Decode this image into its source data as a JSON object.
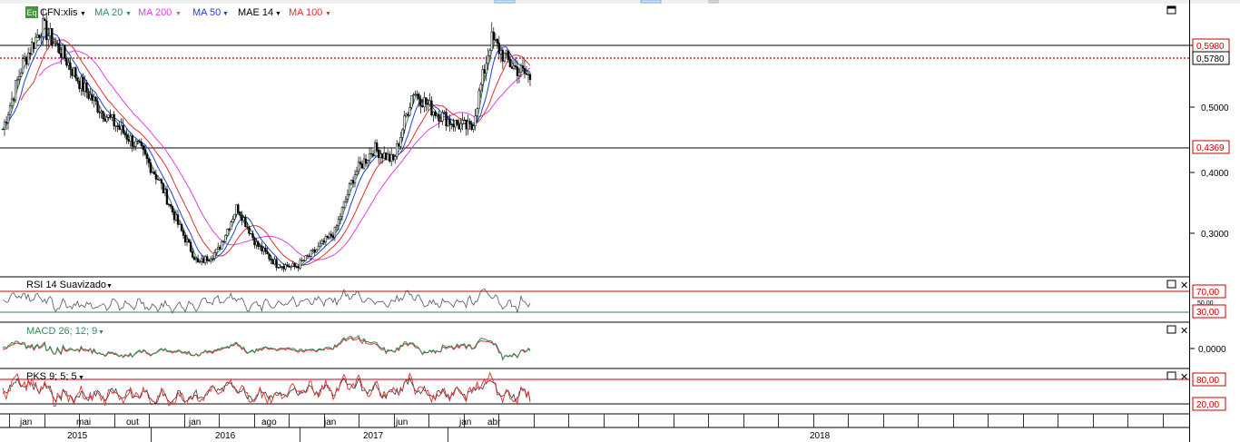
{
  "main_panel": {
    "symbol_badge": "Eq",
    "symbol_label": "CFN:xlis",
    "indicators": [
      {
        "label": "MA 20",
        "color": "#2e8b57"
      },
      {
        "label": "MA 200",
        "color": "#e040e0"
      },
      {
        "label": "MA 50",
        "color": "#1f3fd8"
      },
      {
        "label": "MAE 14",
        "color": "#000000"
      },
      {
        "label": "MA 100",
        "color": "#e03030"
      }
    ],
    "price_axis_ticks": [
      "0,5000",
      "0,4000",
      "0,3000"
    ],
    "price_boxes": [
      {
        "label": "0,5980"
      },
      {
        "label": "0,5780"
      },
      {
        "label": "0,4369"
      }
    ]
  },
  "rsi_panel": {
    "title": "RSI 14 Suavizado",
    "levels": [
      "70,00",
      "30,00"
    ],
    "overlap_text": "50,00"
  },
  "macd_panel": {
    "title": "MACD 26; 12; 9",
    "zero_label": "0,0000"
  },
  "pks_panel": {
    "title": "PKS 9; 5; 5",
    "levels": [
      "80,00",
      "20,00"
    ]
  },
  "time_axis": {
    "months": [
      "jan",
      "mai",
      "out",
      "jan",
      "ago",
      "jan",
      "jun",
      "jan",
      "abr"
    ],
    "years": [
      "2015",
      "2016",
      "2017",
      "2018"
    ]
  },
  "chart_data": {
    "type": "candlestick",
    "title": "",
    "series": [
      {
        "name": "CFN:xlis",
        "approx_closes": [
          0.46,
          0.56,
          0.62,
          0.58,
          0.53,
          0.49,
          0.46,
          0.43,
          0.38,
          0.31,
          0.25,
          0.27,
          0.34,
          0.28,
          0.25,
          0.245,
          0.27,
          0.3,
          0.39,
          0.43,
          0.41,
          0.52,
          0.49,
          0.47,
          0.46,
          0.6,
          0.56,
          0.54
        ]
      },
      {
        "name": "MA 20"
      },
      {
        "name": "MA 50"
      },
      {
        "name": "MA 100"
      },
      {
        "name": "MA 200"
      }
    ],
    "ylim": [
      0.23,
      0.655
    ],
    "horizontal_levels": [
      0.598,
      0.578,
      0.4369
    ]
  }
}
